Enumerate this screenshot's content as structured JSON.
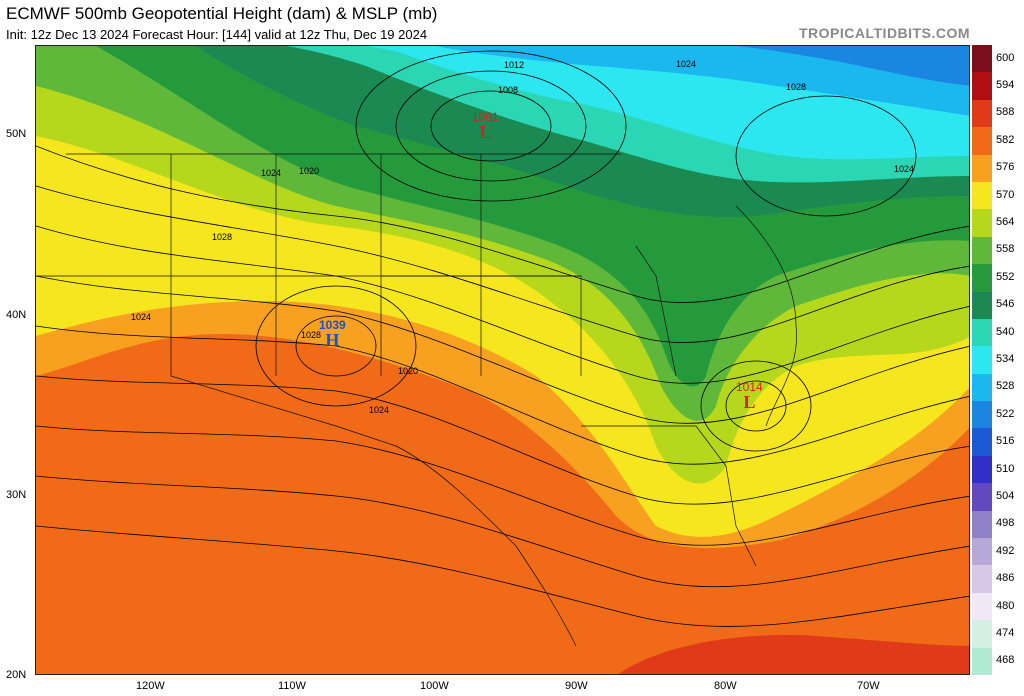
{
  "header": {
    "title": "ECMWF 500mb Geopotential Height (dam) & MSLP (mb)",
    "subtitle": "Init: 12z Dec 13 2024   Forecast Hour: [144]   valid at 12z Thu, Dec 19 2024",
    "brand": "TROPICALTIDBITS.COM"
  },
  "map": {
    "lat_labels": [
      "50N",
      "40N",
      "30N",
      "20N"
    ],
    "lon_labels": [
      "120W",
      "110W",
      "100W",
      "90W",
      "80W",
      "70W"
    ],
    "pressure_centers": [
      {
        "type": "L",
        "value": "1001",
        "color": "#d42020"
      },
      {
        "type": "H",
        "value": "1039",
        "color": "#2050c0"
      },
      {
        "type": "L",
        "value": "1014",
        "color": "#d42020"
      }
    ],
    "isobar_labels": [
      "1012",
      "1008",
      "1024",
      "1028",
      "1024",
      "1024",
      "1020",
      "1028",
      "1024",
      "1028",
      "1020",
      "1024"
    ]
  },
  "colorbar": {
    "levels": [
      {
        "label": "600",
        "color": "#7a0e1a"
      },
      {
        "label": "594",
        "color": "#b00e12"
      },
      {
        "label": "588",
        "color": "#e03a18"
      },
      {
        "label": "582",
        "color": "#f06a18"
      },
      {
        "label": "576",
        "color": "#f8a020"
      },
      {
        "label": "570",
        "color": "#f5e61e"
      },
      {
        "label": "564",
        "color": "#b5d81c"
      },
      {
        "label": "558",
        "color": "#60b83a"
      },
      {
        "label": "552",
        "color": "#259a3c"
      },
      {
        "label": "546",
        "color": "#1b8a52"
      },
      {
        "label": "540",
        "color": "#2ad6b4"
      },
      {
        "label": "534",
        "color": "#2ce6f0"
      },
      {
        "label": "528",
        "color": "#1ab8ee"
      },
      {
        "label": "522",
        "color": "#1a86e2"
      },
      {
        "label": "516",
        "color": "#1a58d4"
      },
      {
        "label": "510",
        "color": "#3030c8"
      },
      {
        "label": "504",
        "color": "#6448c0"
      },
      {
        "label": "498",
        "color": "#9080c8"
      },
      {
        "label": "492",
        "color": "#b8a8d8"
      },
      {
        "label": "486",
        "color": "#d8c8e8"
      },
      {
        "label": "480",
        "color": "#f0e8f4"
      },
      {
        "label": "474",
        "color": "#d4f0e4"
      },
      {
        "label": "468",
        "color": "#b0ead4"
      }
    ]
  }
}
